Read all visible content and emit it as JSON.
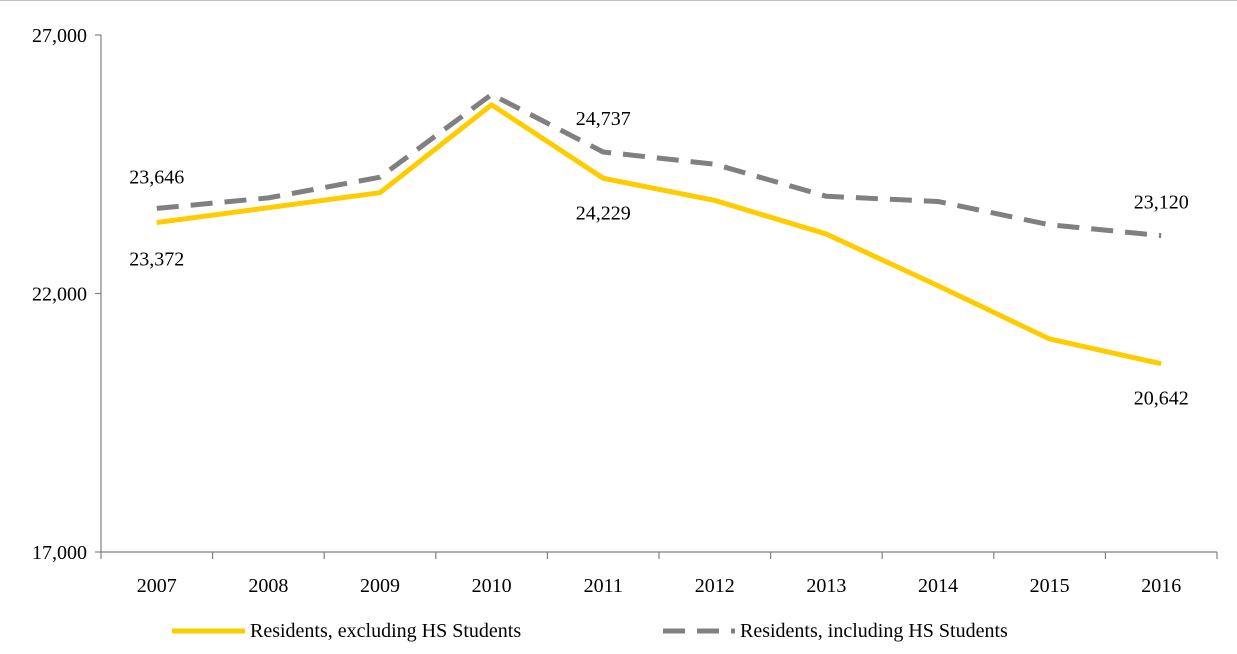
{
  "chart_data": {
    "type": "line",
    "title": "",
    "xlabel": "",
    "ylabel": "",
    "categories": [
      "2007",
      "2008",
      "2009",
      "2010",
      "2011",
      "2012",
      "2013",
      "2014",
      "2015",
      "2016"
    ],
    "ylim": [
      17000,
      27000
    ],
    "yticks": [
      17000,
      22000,
      27000
    ],
    "ytick_labels": [
      "17,000",
      "22,000",
      "27,000"
    ],
    "grid": false,
    "legend_position": "bottom",
    "series": [
      {
        "name": "Residents, excluding HS Students",
        "color": "#FFCC00",
        "style": "solid",
        "values": [
          23372,
          23660,
          23950,
          25650,
          24229,
          23800,
          23150,
          22150,
          21120,
          20642
        ]
      },
      {
        "name": "Residents, including HS Students",
        "color": "#808080",
        "style": "dashed",
        "values": [
          23646,
          23850,
          24250,
          25850,
          24737,
          24500,
          23880,
          23780,
          23330,
          23120
        ]
      }
    ],
    "data_labels": [
      {
        "series": 0,
        "index": 0,
        "text": "23,372"
      },
      {
        "series": 1,
        "index": 0,
        "text": "23,646"
      },
      {
        "series": 1,
        "index": 4,
        "text": "24,737"
      },
      {
        "series": 0,
        "index": 4,
        "text": "24,229"
      },
      {
        "series": 1,
        "index": 9,
        "text": "23,120"
      },
      {
        "series": 0,
        "index": 9,
        "text": "20,642"
      }
    ]
  }
}
